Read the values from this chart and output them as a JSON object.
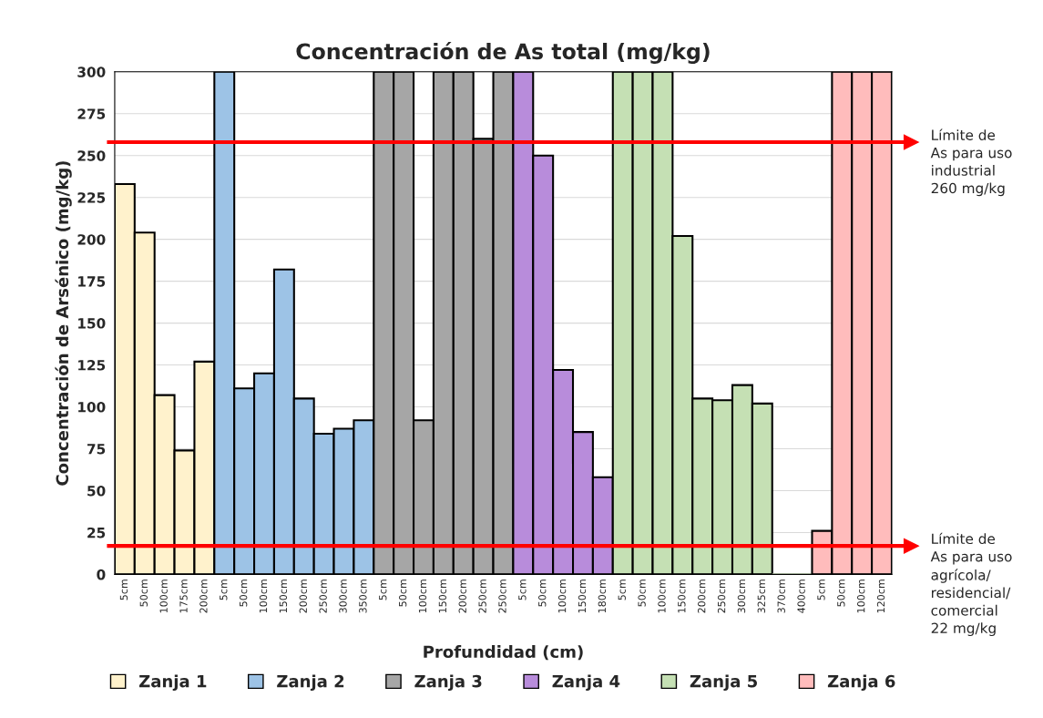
{
  "chart_data": {
    "type": "bar",
    "title": "Concentración de As total (mg/kg)",
    "xlabel": "Profundidad (cm)",
    "ylabel": "Concentración de Arsénico (mg/kg)",
    "categories": [
      "5cm",
      "50cm",
      "100cm",
      "175cm",
      "200cm",
      "5cm",
      "50cm",
      "100cm",
      "150cm",
      "200cm",
      "250cm",
      "300cm",
      "350cm",
      "5cm",
      "50cm",
      "100cm",
      "150cm",
      "200cm",
      "250cm",
      "250cm",
      "5cm",
      "50cm",
      "100cm",
      "150cm",
      "180cm",
      "5cm",
      "50cm",
      "100cm",
      "150cm",
      "200cm",
      "250cm",
      "300cm",
      "325cm",
      "370cm",
      "400cm",
      "5cm",
      "50cm",
      "100cm",
      "120cm"
    ],
    "series": [
      {
        "name": "Zanja 1",
        "color": "#fff2cc",
        "values": [
          233,
          204,
          107,
          74,
          127,
          null,
          null,
          null,
          null,
          null,
          null,
          null,
          null,
          null,
          null,
          null,
          null,
          null,
          null,
          null,
          null,
          null,
          null,
          null,
          null,
          null,
          null,
          null,
          null,
          null,
          null,
          null,
          null,
          null,
          null,
          null,
          null,
          null,
          null
        ]
      },
      {
        "name": "Zanja 2",
        "color": "#9dc3e6",
        "values": [
          null,
          null,
          null,
          null,
          null,
          300,
          111,
          120,
          182,
          105,
          84,
          87,
          92,
          null,
          null,
          null,
          null,
          null,
          null,
          null,
          null,
          null,
          null,
          null,
          null,
          null,
          null,
          null,
          null,
          null,
          null,
          null,
          null,
          null,
          null,
          null,
          null,
          null,
          null
        ]
      },
      {
        "name": "Zanja 3",
        "color": "#a6a6a6",
        "values": [
          null,
          null,
          null,
          null,
          null,
          null,
          null,
          null,
          null,
          null,
          null,
          null,
          null,
          300,
          300,
          92,
          300,
          300,
          260,
          300,
          null,
          null,
          null,
          null,
          null,
          null,
          null,
          null,
          null,
          null,
          null,
          null,
          null,
          null,
          null,
          null,
          null,
          null,
          null
        ]
      },
      {
        "name": "Zanja 4",
        "color": "#b88cdb",
        "values": [
          null,
          null,
          null,
          null,
          null,
          null,
          null,
          null,
          null,
          null,
          null,
          null,
          null,
          null,
          null,
          null,
          null,
          null,
          null,
          null,
          300,
          250,
          122,
          85,
          58,
          null,
          null,
          null,
          null,
          null,
          null,
          null,
          null,
          null,
          null,
          null,
          null,
          null,
          null
        ]
      },
      {
        "name": "Zanja 5",
        "color": "#c5e0b4",
        "values": [
          null,
          null,
          null,
          null,
          null,
          null,
          null,
          null,
          null,
          null,
          null,
          null,
          null,
          null,
          null,
          null,
          null,
          null,
          null,
          null,
          null,
          null,
          null,
          null,
          null,
          300,
          300,
          300,
          202,
          105,
          104,
          113,
          102,
          0,
          0,
          null,
          null,
          null,
          null
        ]
      },
      {
        "name": "Zanja 6",
        "color": "#ffbcbc",
        "values": [
          null,
          null,
          null,
          null,
          null,
          null,
          null,
          null,
          null,
          null,
          null,
          null,
          null,
          null,
          null,
          null,
          null,
          null,
          null,
          null,
          null,
          null,
          null,
          null,
          null,
          null,
          null,
          null,
          null,
          null,
          null,
          null,
          null,
          null,
          null,
          26,
          300,
          300,
          300
        ]
      }
    ],
    "ylim": [
      0,
      300
    ],
    "yticks": [
      0,
      25,
      50,
      75,
      100,
      125,
      150,
      175,
      200,
      225,
      250,
      275,
      300
    ],
    "grid": "y",
    "legend": "bottom",
    "ref_lines": [
      {
        "axis": "y",
        "value": 258,
        "label": "Límite de\nAs para uso\nindustrial\n260 mg/kg",
        "color": "#ff0000"
      },
      {
        "axis": "y",
        "value": 17,
        "label": "Límite de\nAs para uso\nagrícola/\nresidencial/\ncomercial\n22 mg/kg",
        "color": "#ff0000"
      }
    ]
  }
}
